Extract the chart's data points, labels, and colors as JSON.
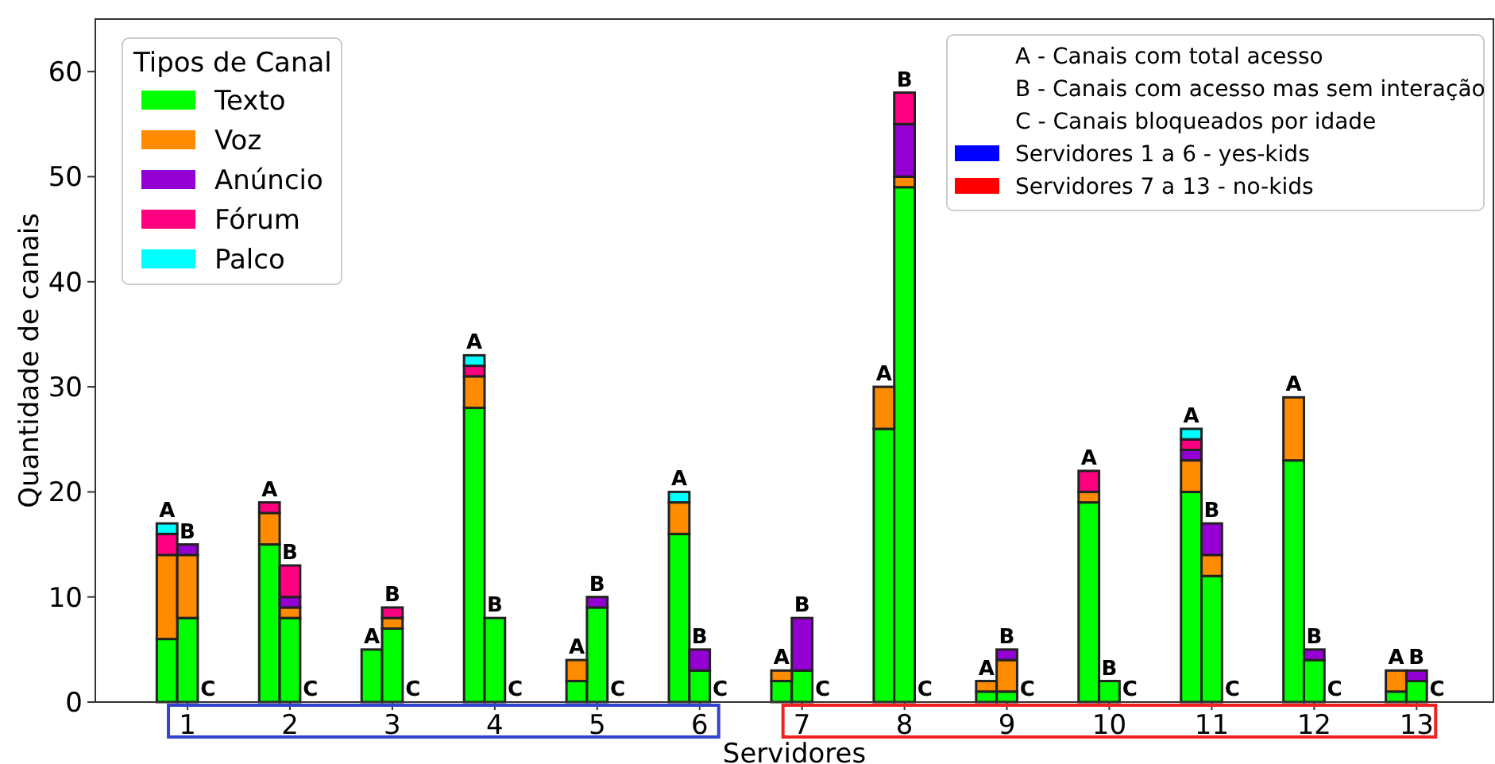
{
  "chart_data": {
    "type": "bar",
    "stacked": true,
    "xlabel": "Servidores",
    "ylabel": "Quantidade de canais",
    "legend_title": "Tipos de Canal",
    "legend": "top left",
    "x": [
      0.8,
      1,
      1.2,
      1.8,
      2,
      2.2,
      2.8,
      3,
      3.2,
      3.8,
      4,
      4.2,
      4.8,
      5,
      5.2,
      5.8,
      6,
      6.2,
      6.8,
      7,
      7.2,
      7.8,
      8,
      8.2,
      8.8,
      9,
      9.2,
      9.8,
      10,
      10.2,
      10.8,
      11,
      11.2,
      11.8,
      12,
      12.2,
      12.8,
      13,
      13.2
    ],
    "xlim": [
      0.1,
      13.75
    ],
    "xticks": [
      1,
      2,
      3,
      4,
      5,
      6,
      7,
      8,
      9,
      10,
      11,
      12,
      13
    ],
    "ylim": [
      0,
      65
    ],
    "yticks": [
      0,
      10,
      20,
      30,
      40,
      50,
      60
    ],
    "series": [
      {
        "name": "Texto",
        "color": "#00ff00",
        "values": [
          6,
          8,
          0,
          15,
          8,
          0,
          5,
          7,
          0,
          28,
          8,
          0,
          2,
          9,
          0,
          16,
          3,
          0,
          2,
          3,
          0,
          26,
          49,
          0,
          1,
          1,
          0,
          19,
          2,
          0,
          20,
          12,
          0,
          23,
          4,
          0,
          1,
          2,
          0
        ]
      },
      {
        "name": "Voz",
        "color": "#ff8c00",
        "values": [
          8,
          6,
          0,
          3,
          1,
          0,
          0,
          1,
          0,
          3,
          0,
          0,
          2,
          0,
          0,
          3,
          0,
          0,
          1,
          0,
          0,
          4,
          1,
          0,
          1,
          3,
          0,
          1,
          0,
          0,
          3,
          2,
          0,
          6,
          0,
          0,
          2,
          0,
          0
        ]
      },
      {
        "name": "Anúncio",
        "color": "#9400d3",
        "values": [
          0,
          1,
          0,
          0,
          1,
          0,
          0,
          0,
          0,
          0,
          0,
          0,
          0,
          1,
          0,
          0,
          2,
          0,
          0,
          5,
          0,
          0,
          5,
          0,
          0,
          1,
          0,
          0,
          0,
          0,
          1,
          3,
          0,
          0,
          1,
          0,
          0,
          1,
          0
        ]
      },
      {
        "name": "Fórum",
        "color": "#ff0080",
        "values": [
          2,
          0,
          0,
          1,
          3,
          0,
          0,
          1,
          0,
          1,
          0,
          0,
          0,
          0,
          0,
          0,
          0,
          0,
          0,
          0,
          0,
          0,
          3,
          0,
          0,
          0,
          0,
          2,
          0,
          0,
          1,
          0,
          0,
          0,
          0,
          0,
          0,
          0,
          0
        ]
      },
      {
        "name": "Palco",
        "color": "#00ffff",
        "values": [
          1,
          0,
          0,
          0,
          0,
          0,
          0,
          0,
          0,
          1,
          0,
          0,
          0,
          0,
          0,
          1,
          0,
          0,
          0,
          0,
          0,
          0,
          0,
          0,
          0,
          0,
          0,
          0,
          0,
          0,
          1,
          0,
          0,
          0,
          0,
          0,
          0,
          0,
          0
        ]
      }
    ],
    "annotations": [
      "A - Canais com total acesso",
      "B - Canais com acesso mas sem interação",
      "C - Canais bloqueados por idade",
      "Servidores 1 a 6 - yes-kids",
      "Servidores 7 a 13 - no-kids",
      {
        "text": "A",
        "x": 0.8,
        "y": 17
      },
      {
        "text": "B",
        "x": 1,
        "y": 15
      },
      {
        "text": "C",
        "x": 1.2,
        "y": 0
      },
      {
        "text": "A",
        "x": 1.8,
        "y": 19
      },
      {
        "text": "B",
        "x": 2,
        "y": 13
      },
      {
        "text": "C",
        "x": 2.2,
        "y": 0
      },
      {
        "text": "A",
        "x": 2.8,
        "y": 5
      },
      {
        "text": "B",
        "x": 3,
        "y": 9
      },
      {
        "text": "C",
        "x": 3.2,
        "y": 0
      },
      {
        "text": "A",
        "x": 3.8,
        "y": 33
      },
      {
        "text": "B",
        "x": 4,
        "y": 8
      },
      {
        "text": "C",
        "x": 4.2,
        "y": 0
      },
      {
        "text": "A",
        "x": 4.8,
        "y": 4
      },
      {
        "text": "B",
        "x": 5,
        "y": 10
      },
      {
        "text": "C",
        "x": 5.2,
        "y": 0
      },
      {
        "text": "A",
        "x": 5.8,
        "y": 20
      },
      {
        "text": "B",
        "x": 6,
        "y": 5
      },
      {
        "text": "C",
        "x": 6.2,
        "y": 0
      },
      {
        "text": "A",
        "x": 6.8,
        "y": 3
      },
      {
        "text": "B",
        "x": 7,
        "y": 8
      },
      {
        "text": "C",
        "x": 7.2,
        "y": 0
      },
      {
        "text": "A",
        "x": 7.8,
        "y": 30
      },
      {
        "text": "B",
        "x": 8,
        "y": 58
      },
      {
        "text": "C",
        "x": 8.2,
        "y": 0
      },
      {
        "text": "A",
        "x": 8.8,
        "y": 2
      },
      {
        "text": "B",
        "x": 9,
        "y": 5
      },
      {
        "text": "C",
        "x": 9.2,
        "y": 0
      },
      {
        "text": "A",
        "x": 9.8,
        "y": 22
      },
      {
        "text": "B",
        "x": 10,
        "y": 2
      },
      {
        "text": "C",
        "x": 10.2,
        "y": 0
      },
      {
        "text": "A",
        "x": 10.8,
        "y": 26
      },
      {
        "text": "B",
        "x": 11,
        "y": 17
      },
      {
        "text": "C",
        "x": 11.2,
        "y": 0
      },
      {
        "text": "A",
        "x": 11.8,
        "y": 29
      },
      {
        "text": "B",
        "x": 12,
        "y": 5
      },
      {
        "text": "C",
        "x": 12.2,
        "y": 0
      },
      {
        "text": "A",
        "x": 12.8,
        "y": 3
      },
      {
        "text": "B",
        "x": 13,
        "y": 3
      },
      {
        "text": "C",
        "x": 13.2,
        "y": 0
      }
    ]
  }
}
